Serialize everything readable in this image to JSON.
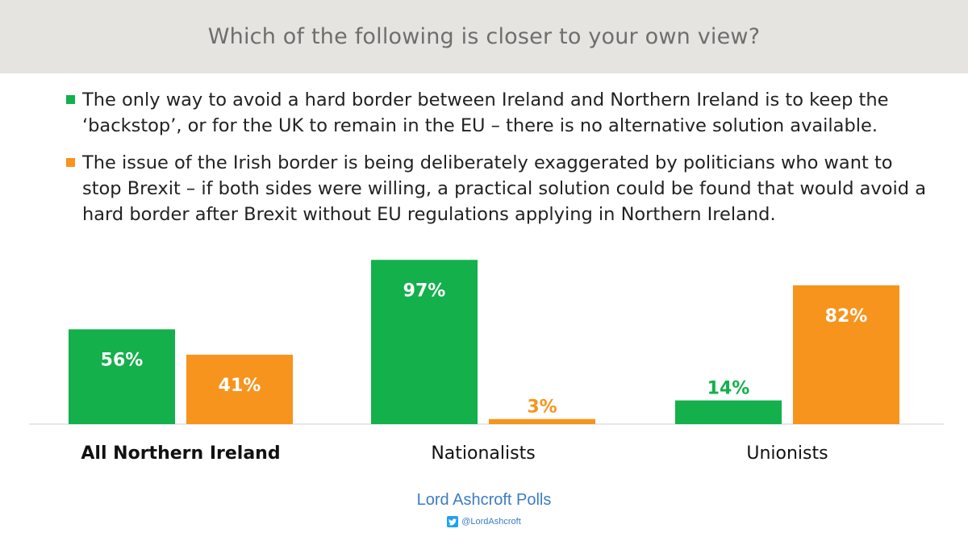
{
  "header": {
    "title": "Which of the following is closer to your own view?"
  },
  "legend": [
    {
      "text": "The only way to avoid a hard border between Ireland and Northern Ireland is to keep the ‘backstop’,  or for the UK to remain in the EU – there is no alternative solution available.",
      "color": "#13b04b"
    },
    {
      "text": "The issue of the Irish border is being deliberately exaggerated by politicians who want to stop Brexit – if both sides were willing, a practical solution could be found that would avoid a hard border after Brexit without EU regulations applying  in Northern Ireland.",
      "color": "#f7941d"
    }
  ],
  "chart_data": {
    "type": "bar",
    "categories": [
      "All Northern Ireland",
      "Nationalists",
      "Unionists"
    ],
    "series": [
      {
        "values": [
          56,
          97,
          14
        ],
        "color": "#13b04b"
      },
      {
        "values": [
          41,
          3,
          82
        ],
        "color": "#f7941d"
      }
    ],
    "data_labels": [
      [
        "56%",
        "97%",
        "14%"
      ],
      [
        "41%",
        "3%",
        "82%"
      ]
    ],
    "ylim": [
      0,
      100
    ],
    "title": "",
    "xlabel": "",
    "ylabel": "",
    "grid": false,
    "bold_categories": [
      "All Northern Ireland"
    ]
  },
  "footer": {
    "brand": "Lord Ashcroft Polls",
    "handle": "@LordAshcroft"
  }
}
